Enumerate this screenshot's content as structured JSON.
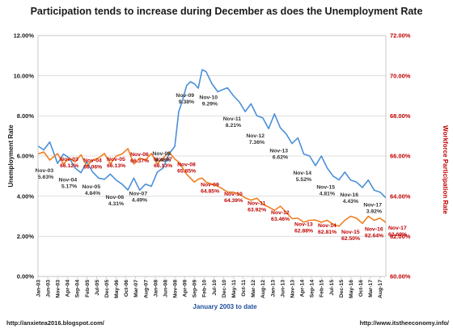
{
  "chart_data": {
    "type": "line",
    "title": "Participation tends to increase during December as does the Unemployment Rate",
    "xlabel": "January 2003 to date",
    "ylabel_left": "Unemployment Rate",
    "ylabel_right": "Workforce Participation Rate",
    "left_axis": {
      "min": 0,
      "max": 12,
      "step": 2,
      "ticks": [
        "0.00%",
        "2.00%",
        "4.00%",
        "6.00%",
        "8.00%",
        "10.00%",
        "12.00%"
      ]
    },
    "right_axis": {
      "min": 60,
      "max": 72,
      "step": 2,
      "ticks": [
        "60.00%",
        "62.00%",
        "64.00%",
        "66.00%",
        "68.00%",
        "70.00%",
        "72.00%"
      ]
    },
    "x_ticks": [
      "Jan-03",
      "Jun-03",
      "Nov-03",
      "Apr-04",
      "Sep-04",
      "Feb-05",
      "Jul-05",
      "Dec-05",
      "May-06",
      "Oct-06",
      "Mar-07",
      "Aug-07",
      "Jan-08",
      "Jun-08",
      "Nov-08",
      "Apr-09",
      "Sep-09",
      "Feb-10",
      "Jul-10",
      "Dec-10",
      "May-11",
      "Oct-11",
      "Mar-12",
      "Aug-12",
      "Jan-13",
      "Jun-13",
      "Nov-13",
      "Apr-14",
      "Sep-14",
      "Feb-15",
      "Jul-15",
      "Dec-15",
      "May-16",
      "Oct-16",
      "Mar-17",
      "Aug-17"
    ],
    "grid": true,
    "legend": "none",
    "series": [
      {
        "axis": "left",
        "color": "#4a90d9",
        "x": [
          "Jan-03",
          "Apr-03",
          "Jul-03",
          "Nov-03",
          "Feb-04",
          "May-04",
          "Aug-04",
          "Nov-04",
          "Feb-05",
          "May-05",
          "Aug-05",
          "Nov-05",
          "Feb-06",
          "May-06",
          "Aug-06",
          "Nov-06",
          "Feb-07",
          "May-07",
          "Aug-07",
          "Nov-07",
          "Feb-08",
          "May-08",
          "Aug-08",
          "Nov-08",
          "Jan-09",
          "Mar-09",
          "May-09",
          "Jul-09",
          "Sep-09",
          "Nov-09",
          "Jan-10",
          "Mar-10",
          "Jun-10",
          "Sep-10",
          "Nov-10",
          "Feb-11",
          "May-11",
          "Aug-11",
          "Nov-11",
          "Feb-12",
          "May-12",
          "Aug-12",
          "Nov-12",
          "Feb-13",
          "May-13",
          "Aug-13",
          "Nov-13",
          "Feb-14",
          "May-14",
          "Aug-14",
          "Nov-14",
          "Feb-15",
          "May-15",
          "Aug-15",
          "Nov-15",
          "Feb-16",
          "May-16",
          "Aug-16",
          "Nov-16",
          "Feb-17",
          "May-17",
          "Aug-17",
          "Nov-17"
        ],
        "values": [
          6.5,
          6.3,
          6.7,
          5.63,
          6.1,
          5.9,
          5.4,
          5.17,
          5.7,
          5.2,
          4.9,
          4.84,
          5.1,
          4.8,
          4.6,
          4.31,
          4.9,
          4.3,
          4.6,
          4.49,
          5.2,
          5.4,
          6.1,
          6.48,
          8.2,
          8.8,
          9.5,
          9.7,
          9.6,
          9.38,
          10.3,
          10.2,
          9.6,
          9.2,
          9.29,
          9.4,
          9.0,
          8.7,
          8.21,
          8.6,
          8.0,
          7.9,
          7.36,
          8.1,
          7.4,
          7.1,
          6.62,
          6.9,
          6.1,
          6.0,
          5.52,
          6.0,
          5.4,
          5.0,
          4.81,
          5.2,
          4.8,
          4.7,
          4.43,
          4.8,
          4.3,
          4.2,
          3.92
        ]
      },
      {
        "axis": "right",
        "color": "#f07f20",
        "x": [
          "Jan-03",
          "Apr-03",
          "Jul-03",
          "Nov-03",
          "Feb-04",
          "May-04",
          "Aug-04",
          "Nov-04",
          "Feb-05",
          "May-05",
          "Aug-05",
          "Nov-05",
          "Feb-06",
          "May-06",
          "Aug-06",
          "Nov-06",
          "Feb-07",
          "May-07",
          "Aug-07",
          "Nov-07",
          "Feb-08",
          "May-08",
          "Aug-08",
          "Nov-08",
          "Jan-09",
          "Mar-09",
          "May-09",
          "Jul-09",
          "Sep-09",
          "Nov-09",
          "Jan-10",
          "Mar-10",
          "Jun-10",
          "Sep-10",
          "Nov-10",
          "Feb-11",
          "May-11",
          "Aug-11",
          "Nov-11",
          "Feb-12",
          "May-12",
          "Aug-12",
          "Nov-12",
          "Feb-13",
          "May-13",
          "Aug-13",
          "Nov-13",
          "Feb-14",
          "May-14",
          "Aug-14",
          "Nov-14",
          "Feb-15",
          "May-15",
          "Aug-15",
          "Nov-15",
          "Feb-16",
          "May-16",
          "Aug-16",
          "Nov-16",
          "Feb-17",
          "May-17",
          "Aug-17",
          "Nov-17"
        ],
        "values": [
          66.1,
          66.2,
          65.8,
          66.12,
          65.6,
          65.9,
          65.7,
          66.06,
          65.5,
          65.8,
          65.9,
          66.13,
          65.6,
          66.0,
          66.1,
          66.37,
          65.6,
          65.9,
          65.8,
          66.13,
          65.6,
          65.9,
          66.2,
          65.85,
          65.7,
          65.4,
          65.1,
          64.9,
          64.7,
          64.85,
          64.9,
          64.7,
          64.6,
          64.5,
          64.39,
          64.2,
          64.2,
          64.1,
          63.92,
          63.8,
          63.9,
          63.6,
          63.46,
          63.3,
          63.5,
          63.2,
          62.88,
          62.9,
          62.7,
          62.8,
          62.81,
          62.7,
          62.8,
          62.6,
          62.5,
          62.8,
          63.0,
          62.9,
          62.64,
          63.0,
          62.8,
          62.9,
          62.69
        ]
      }
    ],
    "annotations": [
      {
        "series": 1,
        "label": "Nov-03",
        "value": "66.12%"
      },
      {
        "series": 0,
        "label": "Nov-03",
        "value": "5.63%"
      },
      {
        "series": 1,
        "label": "Nov-04",
        "value": "66.06%"
      },
      {
        "series": 0,
        "label": "Nov-04",
        "value": "5.17%"
      },
      {
        "series": 1,
        "label": "Nov-05",
        "value": "66.13%"
      },
      {
        "series": 0,
        "label": "Nov-05",
        "value": "4.84%"
      },
      {
        "series": 1,
        "label": "Nov-06",
        "value": "66.37%"
      },
      {
        "series": 0,
        "label": "Nov-06",
        "value": "4.31%"
      },
      {
        "series": 1,
        "label": "Nov-07",
        "value": "66.13%"
      },
      {
        "series": 0,
        "label": "Nov-07",
        "value": "4.49%"
      },
      {
        "series": 0,
        "label": "Nov-08",
        "value": "6.48%"
      },
      {
        "series": 1,
        "label": "Nov-08",
        "value": "65.85%"
      },
      {
        "series": 0,
        "label": "Nov-09",
        "value": "9.38%"
      },
      {
        "series": 1,
        "label": "Nov-09",
        "value": "64.85%"
      },
      {
        "series": 0,
        "label": "Nov-10",
        "value": "9.29%"
      },
      {
        "series": 1,
        "label": "Nov-10",
        "value": "64.39%"
      },
      {
        "series": 0,
        "label": "Nov-11",
        "value": "8.21%"
      },
      {
        "series": 1,
        "label": "Nov-11",
        "value": "63.92%"
      },
      {
        "series": 0,
        "label": "Nov-12",
        "value": "7.36%"
      },
      {
        "series": 1,
        "label": "Nov-12",
        "value": "63.46%"
      },
      {
        "series": 0,
        "label": "Nov-13",
        "value": "6.62%"
      },
      {
        "series": 1,
        "label": "Nov-13",
        "value": "62.88%"
      },
      {
        "series": 0,
        "label": "Nov-14",
        "value": "5.52%"
      },
      {
        "series": 1,
        "label": "Nov-14",
        "value": "62.81%"
      },
      {
        "series": 0,
        "label": "Nov-15",
        "value": "4.81%"
      },
      {
        "series": 1,
        "label": "Nov-15",
        "value": "62.50%"
      },
      {
        "series": 0,
        "label": "Nov-16",
        "value": "4.43%"
      },
      {
        "series": 1,
        "label": "Nov-16",
        "value": "62.64%"
      },
      {
        "series": 0,
        "label": "Nov-17",
        "value": "3.92%"
      },
      {
        "series": 1,
        "label": "Nov-17",
        "value": "62.69%"
      }
    ]
  },
  "footer": {
    "left_url": "http://anxietea2016.blogspot.com/",
    "right_url": "http://www.itstheeconomy.info/"
  },
  "colors": {
    "unemployment": "#4a90d9",
    "participation": "#f07f20",
    "left_axis_text": "#1a1a1a",
    "right_axis_text": "#c00000",
    "xlabel": "#1f4e9c"
  }
}
